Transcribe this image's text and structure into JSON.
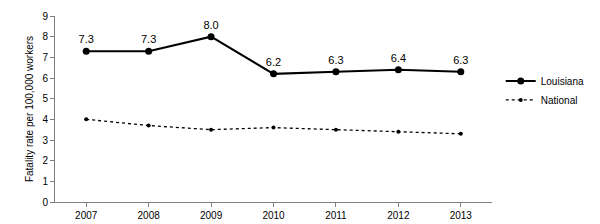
{
  "chart_data": {
    "type": "line",
    "y_label": "Fatality rate per 100,000 workers",
    "categories": [
      "2007",
      "2008",
      "2009",
      "2010",
      "2011",
      "2012",
      "2013"
    ],
    "series": [
      {
        "name": "Louisiana",
        "color": "#000000",
        "marker": "circle",
        "line_style": "solid",
        "data_labels": true,
        "values": [
          7.3,
          7.3,
          8.0,
          6.2,
          6.3,
          6.4,
          6.3
        ],
        "value_labels": [
          "7.3",
          "7.3",
          "8.0",
          "6.2",
          "6.3",
          "6.4",
          "6.3"
        ]
      },
      {
        "name": "National",
        "color": "#000000",
        "marker": "circle",
        "line_style": "dot",
        "values": [
          4.0,
          3.7,
          3.5,
          3.6,
          3.5,
          3.4,
          3.3
        ]
      }
    ],
    "ylim": [
      0,
      9
    ],
    "yticks": [
      0,
      1,
      2,
      3,
      4,
      5,
      6,
      7,
      8,
      9
    ],
    "grid": false,
    "legend": "right"
  }
}
